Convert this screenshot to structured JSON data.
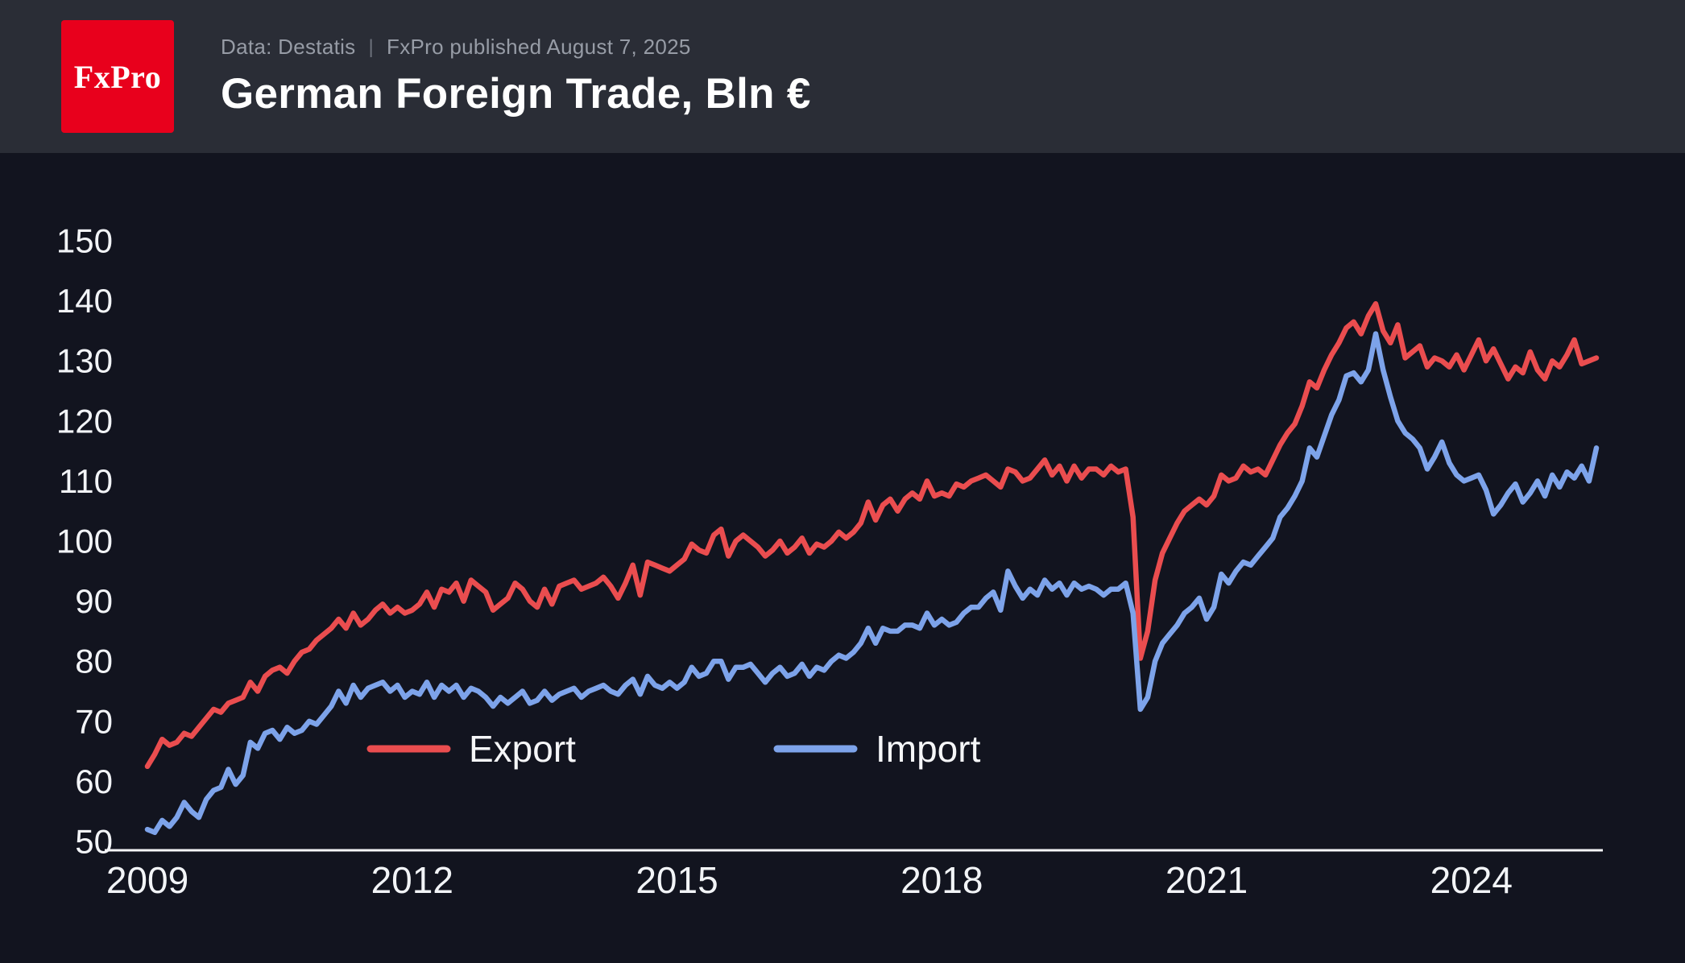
{
  "header": {
    "logo_text": "FxPro",
    "source": "Data: Destatis",
    "separator": "|",
    "published": "FxPro published August 7, 2025",
    "title": "German Foreign Trade, Bln €"
  },
  "colors": {
    "page_bg": "#12141f",
    "header_bg": "#2a2d36",
    "logo_red": "#e8001c",
    "muted_text": "#979ca6",
    "axis_line": "#f5f6f8",
    "export_red": "#ea4d4f",
    "import_blue": "#7da3ea"
  },
  "chart_data": {
    "type": "line",
    "title": "German Foreign Trade, Bln €",
    "x_unit": "month",
    "x_start": "2009-01",
    "x_end": "2025-06",
    "x_tick_labels": [
      "2009",
      "2012",
      "2015",
      "2018",
      "2021",
      "2024"
    ],
    "y_ticks": [
      50,
      60,
      70,
      80,
      90,
      100,
      110,
      120,
      130,
      140,
      150
    ],
    "ylim": [
      50,
      150
    ],
    "grid": false,
    "legend_position": "inside-bottom",
    "series": [
      {
        "name": "Export",
        "color": "#ea4d4f",
        "values": [
          62.5,
          64.5,
          67.0,
          66.0,
          66.5,
          68.0,
          67.5,
          69.0,
          70.5,
          72.0,
          71.5,
          73.0,
          73.5,
          74.0,
          76.5,
          75.0,
          77.5,
          78.5,
          79.0,
          78.0,
          80.0,
          81.5,
          82.0,
          83.5,
          84.5,
          85.5,
          87.0,
          85.5,
          88.0,
          86.0,
          87.0,
          88.5,
          89.5,
          88.0,
          89.0,
          88.0,
          88.5,
          89.5,
          91.5,
          89.0,
          92.0,
          91.5,
          93.0,
          90.0,
          93.5,
          92.5,
          91.5,
          88.5,
          89.5,
          90.5,
          93.0,
          92.0,
          90.0,
          89.0,
          92.0,
          89.5,
          92.5,
          93.0,
          93.5,
          92.0,
          92.5,
          93.0,
          94.0,
          92.5,
          90.5,
          93.0,
          96.0,
          91.0,
          96.5,
          96.0,
          95.5,
          95.0,
          96.0,
          97.0,
          99.5,
          98.5,
          98.0,
          101.0,
          102.0,
          97.5,
          100.0,
          101.0,
          100.0,
          99.0,
          97.5,
          98.5,
          100.0,
          98.0,
          99.0,
          100.5,
          98.0,
          99.5,
          99.0,
          100.0,
          101.5,
          100.5,
          101.5,
          103.0,
          106.5,
          103.5,
          106.0,
          107.0,
          105.0,
          107.0,
          108.0,
          107.0,
          110.0,
          107.5,
          108.0,
          107.5,
          109.5,
          109.0,
          110.0,
          110.5,
          111.0,
          110.0,
          109.0,
          112.0,
          111.5,
          110.0,
          110.5,
          112.0,
          113.5,
          111.0,
          112.5,
          110.0,
          112.5,
          110.5,
          112.0,
          112.0,
          111.0,
          112.5,
          111.5,
          112.0,
          104.0,
          80.5,
          85.0,
          93.5,
          98.0,
          100.5,
          103.0,
          105.0,
          106.0,
          107.0,
          106.0,
          107.5,
          111.0,
          110.0,
          110.5,
          112.5,
          111.5,
          112.0,
          111.0,
          113.5,
          116.0,
          118.0,
          119.5,
          122.5,
          126.5,
          125.5,
          128.5,
          131.0,
          133.0,
          135.5,
          136.5,
          134.5,
          137.5,
          139.5,
          135.0,
          133.0,
          136.0,
          130.5,
          131.5,
          132.5,
          129.0,
          130.5,
          130.0,
          129.0,
          131.0,
          128.5,
          131.0,
          133.5,
          130.0,
          132.0,
          129.5,
          127.0,
          129.0,
          128.0,
          131.5,
          128.5,
          127.0,
          130.0,
          129.0,
          131.0,
          133.5,
          129.5,
          130.0,
          130.5
        ]
      },
      {
        "name": "Import",
        "color": "#7da3ea",
        "values": [
          52.0,
          51.5,
          53.5,
          52.5,
          54.0,
          56.5,
          55.0,
          54.0,
          57.0,
          58.5,
          59.0,
          62.0,
          59.5,
          61.0,
          66.5,
          65.5,
          68.0,
          68.5,
          67.0,
          69.0,
          68.0,
          68.5,
          70.0,
          69.5,
          71.0,
          72.5,
          75.0,
          73.0,
          76.0,
          74.0,
          75.5,
          76.0,
          76.5,
          75.0,
          76.0,
          74.0,
          75.0,
          74.5,
          76.5,
          74.0,
          76.0,
          75.0,
          76.0,
          74.0,
          75.5,
          75.0,
          74.0,
          72.5,
          74.0,
          73.0,
          74.0,
          75.0,
          73.0,
          73.5,
          75.0,
          73.5,
          74.5,
          75.0,
          75.5,
          74.0,
          75.0,
          75.5,
          76.0,
          75.0,
          74.5,
          76.0,
          77.0,
          74.5,
          77.5,
          76.0,
          75.5,
          76.5,
          75.5,
          76.5,
          79.0,
          77.5,
          78.0,
          80.0,
          80.0,
          77.0,
          79.0,
          79.0,
          79.5,
          78.0,
          76.5,
          78.0,
          79.0,
          77.5,
          78.0,
          79.5,
          77.5,
          79.0,
          78.5,
          80.0,
          81.0,
          80.5,
          81.5,
          83.0,
          85.5,
          83.0,
          85.5,
          85.0,
          85.0,
          86.0,
          86.0,
          85.5,
          88.0,
          86.0,
          87.0,
          86.0,
          86.5,
          88.0,
          89.0,
          89.0,
          90.5,
          91.5,
          88.5,
          95.0,
          92.5,
          90.5,
          92.0,
          91.0,
          93.5,
          92.0,
          93.0,
          91.0,
          93.0,
          92.0,
          92.5,
          92.0,
          91.0,
          92.0,
          92.0,
          93.0,
          88.0,
          72.0,
          74.0,
          80.0,
          83.0,
          84.5,
          86.0,
          88.0,
          89.0,
          90.5,
          87.0,
          89.0,
          94.5,
          93.0,
          95.0,
          96.5,
          96.0,
          97.5,
          99.0,
          100.5,
          104.0,
          105.5,
          107.5,
          110.0,
          115.5,
          114.0,
          117.5,
          121.0,
          123.5,
          127.5,
          128.0,
          126.5,
          128.5,
          134.5,
          128.5,
          124.0,
          120.0,
          118.0,
          117.0,
          115.5,
          112.0,
          114.0,
          116.5,
          113.0,
          111.0,
          110.0,
          110.5,
          111.0,
          108.5,
          104.5,
          106.0,
          108.0,
          109.5,
          106.5,
          108.0,
          110.0,
          107.5,
          111.0,
          109.0,
          111.5,
          110.5,
          112.5,
          110.0,
          115.5
        ]
      }
    ]
  }
}
